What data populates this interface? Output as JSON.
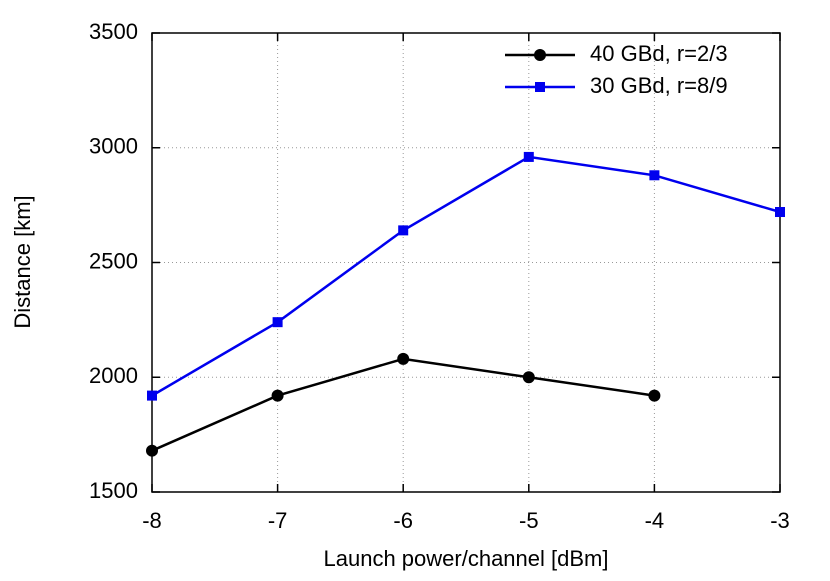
{
  "chart_data": {
    "type": "line",
    "xlabel": "Launch power/channel [dBm]",
    "ylabel": "Distance [km]",
    "xlim": [
      -8,
      -3
    ],
    "xticks": [
      -8,
      -7,
      -6,
      -5,
      -4,
      -3
    ],
    "ylim": [
      1500,
      3500
    ],
    "yticks": [
      1500,
      2000,
      2500,
      3000,
      3500
    ],
    "grid": true,
    "legend": "upper right",
    "series": [
      {
        "name": "40 GBd, r=2/3",
        "color": "#000000",
        "marker": "circle",
        "x": [
          -8,
          -7,
          -6,
          -5,
          -4
        ],
        "values": [
          1680,
          1920,
          2080,
          2000,
          1920
        ]
      },
      {
        "name": "30 GBd, r=8/9",
        "color": "#0000ee",
        "marker": "square",
        "x": [
          -8,
          -7,
          -6,
          -5,
          -4,
          -3
        ],
        "values": [
          1920,
          2240,
          2640,
          2960,
          2880,
          2720
        ]
      }
    ]
  }
}
